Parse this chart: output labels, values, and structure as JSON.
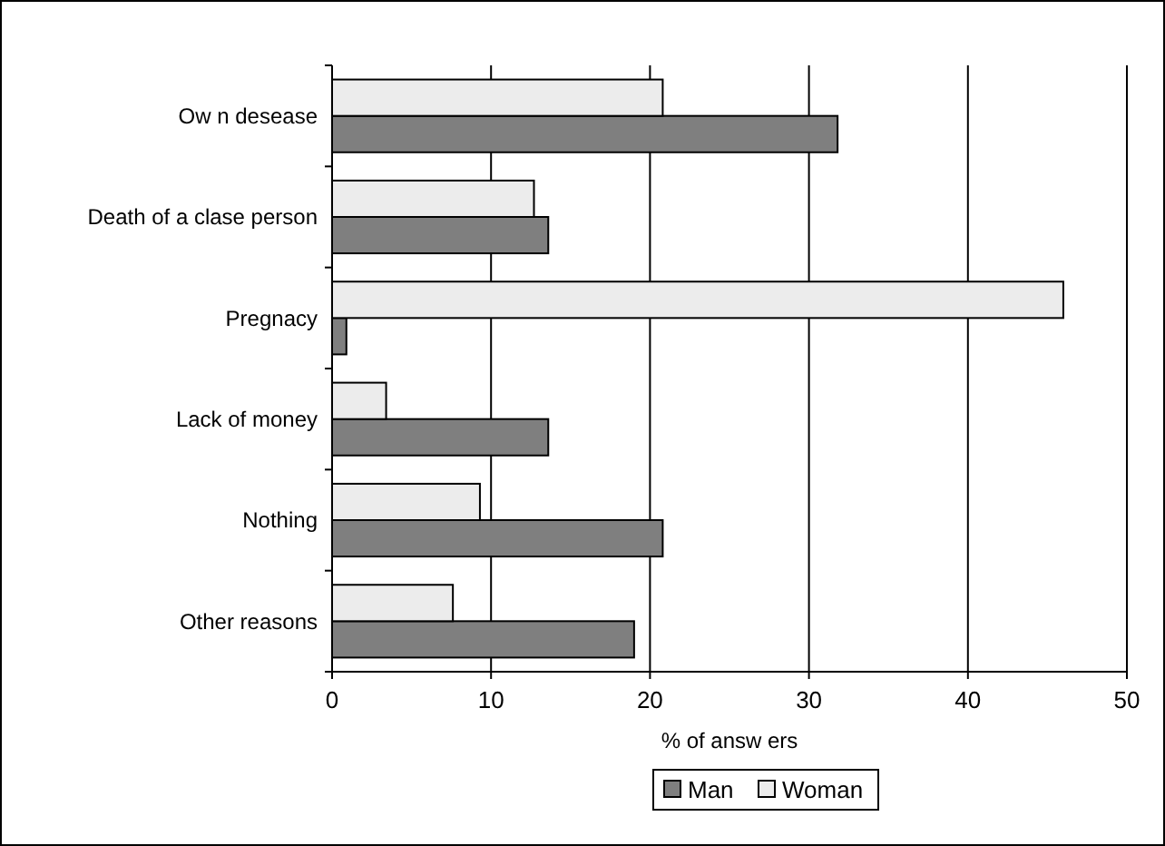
{
  "chart_data": {
    "type": "bar",
    "orientation": "horizontal",
    "xlabel": "% of answ ers",
    "categories": [
      "Ow n desease",
      "Death of a clase person",
      "Pregnacy",
      "Lack of money",
      "Nothing",
      "Other reasons"
    ],
    "series": [
      {
        "name": "Man",
        "color": "#7f7f7f",
        "values": [
          31.8,
          13.6,
          0.9,
          13.6,
          20.8,
          19.0
        ]
      },
      {
        "name": "Woman",
        "color": "#ececec",
        "values": [
          20.8,
          12.7,
          46,
          3.4,
          9.3,
          7.6
        ]
      }
    ],
    "xlim": [
      0,
      50
    ],
    "xticks": [
      0,
      10,
      20,
      30,
      40,
      50
    ],
    "grid": "x",
    "legend": "bottom"
  }
}
